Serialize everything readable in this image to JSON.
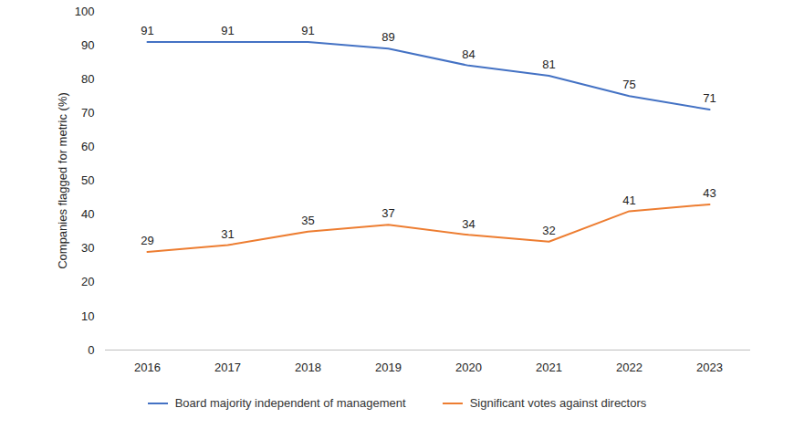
{
  "chart_data": {
    "type": "line",
    "y_label": "Companies flagged for metric (%)",
    "categories": [
      "2016",
      "2017",
      "2018",
      "2019",
      "2020",
      "2021",
      "2022",
      "2023"
    ],
    "series": [
      {
        "name": "Board majority independent of management",
        "color": "#4472c4",
        "values": [
          91,
          91,
          91,
          89,
          84,
          81,
          75,
          71
        ]
      },
      {
        "name": "Significant votes against directors",
        "color": "#ed7d31",
        "values": [
          29,
          31,
          35,
          37,
          34,
          32,
          41,
          43
        ]
      }
    ],
    "ylim": [
      0,
      100
    ],
    "yticks": [
      0,
      10,
      20,
      30,
      40,
      50,
      60,
      70,
      80,
      90,
      100
    ],
    "grid": false,
    "data_labels": true,
    "legend": "bottom"
  }
}
